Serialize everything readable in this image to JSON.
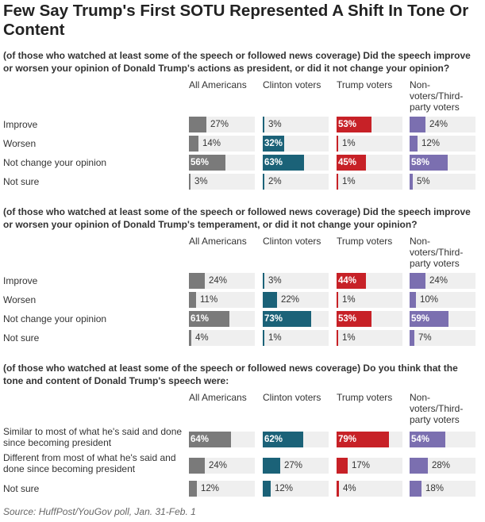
{
  "title": "Few Say Trump's First SOTU Represented A Shift In Tone Or Content",
  "source": "Source: HuffPost/YouGov poll, Jan. 31-Feb. 1",
  "colors": {
    "All Americans": "#7a7a7a",
    "Clinton voters": "#1b6278",
    "Trump voters": "#c72127",
    "Non-voters/Third-party voters": "#7b6fb0",
    "cell_bg": "#efefef"
  },
  "chart_data": [
    {
      "type": "bar",
      "title": "(of those who watched at least some of the speech or followed news coverage) Did the speech improve or worsen your opinion of Donald Trump's actions as president, or did it not change your opinion?",
      "categories": [
        "Improve",
        "Worsen",
        "Not change your opinion",
        "Not sure"
      ],
      "series": [
        {
          "name": "All Americans",
          "values": [
            27,
            14,
            56,
            3
          ]
        },
        {
          "name": "Clinton voters",
          "values": [
            3,
            32,
            63,
            2
          ]
        },
        {
          "name": "Trump voters",
          "values": [
            53,
            1,
            45,
            1
          ]
        },
        {
          "name": "Non-voters/Third-party voters",
          "values": [
            24,
            12,
            58,
            5
          ]
        }
      ],
      "value_suffix": "%",
      "xlim": [
        0,
        100
      ]
    },
    {
      "type": "bar",
      "title": "(of those who watched at least some of the speech or followed news coverage) Did the speech improve or worsen your opinion of Donald Trump's temperament, or did it not change your opinion?",
      "categories": [
        "Improve",
        "Worsen",
        "Not change your opinion",
        "Not sure"
      ],
      "series": [
        {
          "name": "All Americans",
          "values": [
            24,
            11,
            61,
            4
          ]
        },
        {
          "name": "Clinton voters",
          "values": [
            3,
            22,
            73,
            1
          ]
        },
        {
          "name": "Trump voters",
          "values": [
            44,
            1,
            53,
            1
          ]
        },
        {
          "name": "Non-voters/Third-party voters",
          "values": [
            24,
            10,
            59,
            7
          ]
        }
      ],
      "value_suffix": "%",
      "xlim": [
        0,
        100
      ]
    },
    {
      "type": "bar",
      "title": "(of those who watched at least some of the speech or followed news coverage) Do you think that the tone and content of Donald Trump's speech were:",
      "categories": [
        "Similar to most of what he's said and done since becoming president",
        "Different from most of what he's said and done since becoming president",
        "Not sure"
      ],
      "series": [
        {
          "name": "All Americans",
          "values": [
            64,
            24,
            12
          ]
        },
        {
          "name": "Clinton voters",
          "values": [
            62,
            27,
            12
          ]
        },
        {
          "name": "Trump voters",
          "values": [
            79,
            17,
            4
          ]
        },
        {
          "name": "Non-voters/Third-party voters",
          "values": [
            54,
            28,
            18
          ]
        }
      ],
      "value_suffix": "%",
      "xlim": [
        0,
        100
      ]
    }
  ]
}
